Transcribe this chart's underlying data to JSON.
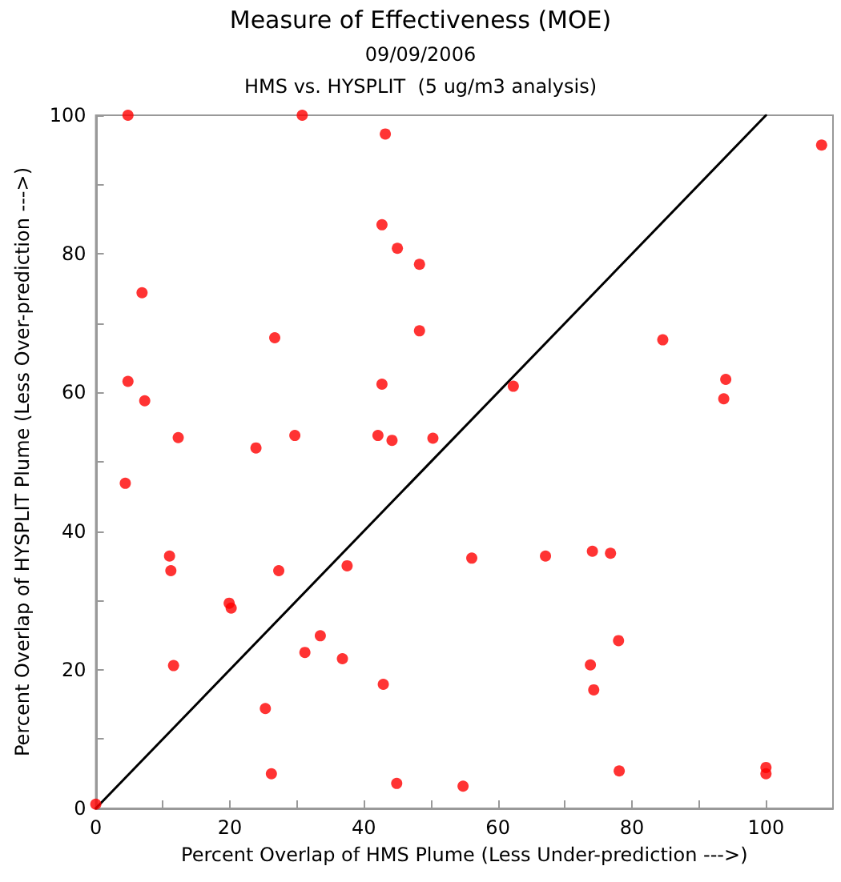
{
  "chart_data": {
    "type": "scatter",
    "title": "Measure of Effectiveness (MOE)",
    "subtitle": "09/09/2006\nHMS vs. HYSPLIT  (5 ug/m3 analysis)",
    "xlabel": "Percent Overlap of HMS Plume (Less Under-prediction --->)",
    "ylabel": "Percent Overlap of HYSPLIT Plume (Less Over-prediction --->)",
    "xlim": [
      0,
      110
    ],
    "ylim": [
      0,
      100
    ],
    "xticks": [
      0,
      {
        "value": 10,
        "label": null
      },
      20,
      {
        "value": 30,
        "label": null
      },
      40,
      {
        "value": 50,
        "label": null
      },
      60,
      {
        "value": 70,
        "label": null
      },
      80,
      {
        "value": 90,
        "label": null
      },
      100
    ],
    "yticks": [
      0,
      {
        "value": 10,
        "label": null
      },
      20,
      {
        "value": 30,
        "label": null
      },
      40,
      {
        "value": 50,
        "label": null
      },
      60,
      {
        "value": 70,
        "label": null
      },
      80,
      {
        "value": 90,
        "label": null
      },
      100
    ],
    "grid": false,
    "marker": "circle",
    "series": [
      {
        "type": "line",
        "color": "#000000",
        "marker": "none",
        "line_style": "solid",
        "x": [
          0,
          100
        ],
        "values": [
          0,
          100
        ]
      },
      {
        "color": "#ff0000",
        "x": [
          4.8,
          30.8,
          43.2,
          42.7,
          45.0,
          48.3,
          6.9,
          26.7,
          48.3,
          4.8,
          42.7,
          7.3,
          12.3,
          23.9,
          29.7,
          42.1,
          44.2,
          50.3,
          62.3,
          84.6,
          94.0,
          93.7,
          108.3,
          0,
          4.4,
          11.0,
          11.2,
          19.9,
          20.2,
          11.6,
          27.3,
          37.5,
          33.5,
          31.2,
          36.8,
          42.9,
          25.3,
          26.2,
          44.9,
          56.1,
          67.1,
          74.1,
          76.8,
          78.0,
          73.8,
          74.3,
          78.1,
          54.8,
          100,
          100
        ],
        "values": [
          100,
          100,
          97.3,
          84.2,
          80.8,
          78.5,
          74.4,
          67.9,
          68.9,
          61.6,
          61.2,
          58.8,
          53.5,
          52.0,
          53.8,
          53.8,
          53.1,
          53.4,
          60.9,
          67.6,
          61.9,
          59.1,
          95.7,
          0.6,
          46.9,
          36.4,
          34.3,
          29.6,
          28.9,
          20.6,
          34.3,
          35.0,
          24.9,
          22.5,
          21.6,
          17.9,
          14.4,
          5.0,
          3.6,
          36.1,
          36.4,
          37.1,
          36.8,
          24.2,
          20.7,
          17.1,
          5.4,
          3.2,
          5.9,
          5.0
        ]
      }
    ]
  }
}
